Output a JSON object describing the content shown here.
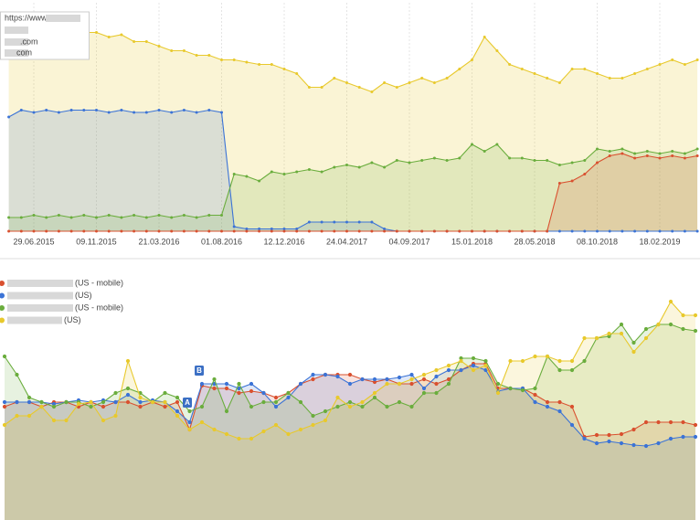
{
  "chart_data": [
    {
      "type": "line",
      "categories": [
        null,
        null,
        "29.06.2015",
        null,
        null,
        null,
        null,
        "09.11.2015",
        null,
        null,
        null,
        null,
        "21.03.2016",
        null,
        null,
        null,
        null,
        "01.08.2016",
        null,
        null,
        null,
        null,
        "12.12.2016",
        null,
        null,
        null,
        null,
        "24.04.2017",
        null,
        null,
        null,
        null,
        "04.09.2017",
        null,
        null,
        null,
        null,
        "15.01.2018",
        null,
        null,
        null,
        null,
        "28.05.2018",
        null,
        null,
        null,
        null,
        "08.10.2018",
        null,
        null,
        null,
        null,
        "18.02.2019",
        null,
        null,
        null
      ],
      "ylim": [
        0,
        100
      ],
      "series": [
        {
          "name": "https://www.",
          "color": "#e8c92c",
          "values": [
            95,
            93,
            91,
            91,
            89,
            89,
            87,
            87,
            85,
            86,
            83,
            83,
            81,
            79,
            79,
            77,
            77,
            75,
            75,
            74,
            73,
            73,
            71,
            69,
            63,
            63,
            67,
            65,
            63,
            61,
            65,
            63,
            65,
            67,
            65,
            67,
            71,
            75,
            85,
            79,
            73,
            71,
            69,
            67,
            65,
            71,
            71,
            69,
            67,
            67,
            69,
            71,
            73,
            75,
            73,
            75
          ]
        },
        {
          "color": "#3b73d6",
          "values": [
            50,
            53,
            52,
            53,
            52,
            53,
            53,
            53,
            52,
            53,
            52,
            52,
            53,
            52,
            53,
            52,
            53,
            52,
            2,
            1,
            1,
            1,
            1,
            1,
            4,
            4,
            4,
            4,
            4,
            4,
            1,
            0,
            0,
            0,
            0,
            0,
            0,
            0,
            0,
            0,
            0,
            0,
            0,
            0,
            0,
            0,
            0,
            0,
            0,
            0,
            0,
            0,
            0,
            0,
            0,
            0
          ]
        },
        {
          "name": ".com",
          "color": "#6aad3d",
          "values": [
            6,
            6,
            7,
            6,
            7,
            6,
            7,
            6,
            7,
            6,
            7,
            6,
            7,
            6,
            7,
            6,
            7,
            7,
            25,
            24,
            22,
            26,
            25,
            26,
            27,
            26,
            28,
            29,
            28,
            30,
            28,
            31,
            30,
            31,
            32,
            31,
            32,
            38,
            35,
            38,
            32,
            32,
            31,
            31,
            29,
            30,
            31,
            36,
            35,
            36,
            34,
            35,
            34,
            35,
            34,
            36
          ]
        },
        {
          "name": "com",
          "color": "#d9502f",
          "values": [
            0,
            0,
            0,
            0,
            0,
            0,
            0,
            0,
            0,
            0,
            0,
            0,
            0,
            0,
            0,
            0,
            0,
            0,
            0,
            0,
            0,
            0,
            0,
            0,
            0,
            0,
            0,
            0,
            0,
            0,
            0,
            0,
            0,
            0,
            0,
            0,
            0,
            0,
            0,
            0,
            0,
            0,
            0,
            0,
            21,
            22,
            25,
            30,
            33,
            34,
            32,
            33,
            32,
            33,
            32,
            33
          ]
        }
      ]
    },
    {
      "type": "line",
      "ylim": [
        0,
        284
      ],
      "annotations": [
        "A",
        "B"
      ],
      "series": [
        {
          "name": "(US - mobile)",
          "color": "#d9502f",
          "values": [
            124,
            129,
            129,
            124,
            129,
            129,
            124,
            129,
            124,
            129,
            129,
            124,
            129,
            124,
            129,
            99,
            147,
            144,
            144,
            139,
            141,
            139,
            134,
            139,
            149,
            154,
            159,
            159,
            159,
            154,
            151,
            154,
            149,
            149,
            154,
            149,
            154,
            164,
            171,
            171,
            144,
            144,
            144,
            137,
            129,
            129,
            124,
            91,
            93,
            93,
            94,
            99,
            107,
            107,
            107,
            107,
            104
          ]
        },
        {
          "name": "(US)",
          "color": "#3b73d6",
          "values": [
            129,
            129,
            129,
            129,
            127,
            129,
            131,
            129,
            131,
            129,
            137,
            129,
            131,
            129,
            119,
            107,
            149,
            149,
            149,
            144,
            149,
            139,
            124,
            134,
            149,
            159,
            159,
            157,
            149,
            154,
            154,
            154,
            156,
            159,
            144,
            157,
            164,
            164,
            169,
            164,
            141,
            144,
            144,
            129,
            124,
            119,
            104,
            89,
            84,
            86,
            84,
            82,
            81,
            84,
            89,
            91,
            91
          ]
        },
        {
          "name": "(US - mobile)",
          "color": "#6aad3d",
          "values": [
            179,
            159,
            134,
            129,
            124,
            129,
            129,
            124,
            129,
            139,
            144,
            139,
            129,
            139,
            134,
            119,
            124,
            154,
            119,
            149,
            124,
            129,
            129,
            139,
            129,
            114,
            119,
            124,
            129,
            124,
            134,
            124,
            129,
            124,
            139,
            139,
            149,
            177,
            177,
            174,
            149,
            144,
            142,
            144,
            179,
            164,
            164,
            174,
            199,
            201,
            214,
            194,
            209,
            214,
            214,
            209,
            207
          ]
        },
        {
          "name": "(US)",
          "color": "#e8c92c",
          "values": [
            104,
            114,
            114,
            124,
            109,
            109,
            127,
            129,
            109,
            114,
            174,
            134,
            129,
            129,
            114,
            99,
            107,
            99,
            94,
            89,
            89,
            97,
            104,
            94,
            99,
            104,
            109,
            134,
            124,
            129,
            139,
            149,
            149,
            154,
            159,
            164,
            169,
            174,
            164,
            169,
            139,
            174,
            174,
            179,
            179,
            174,
            174,
            199,
            199,
            204,
            204,
            184,
            199,
            214,
            239,
            224,
            224
          ]
        }
      ]
    }
  ]
}
